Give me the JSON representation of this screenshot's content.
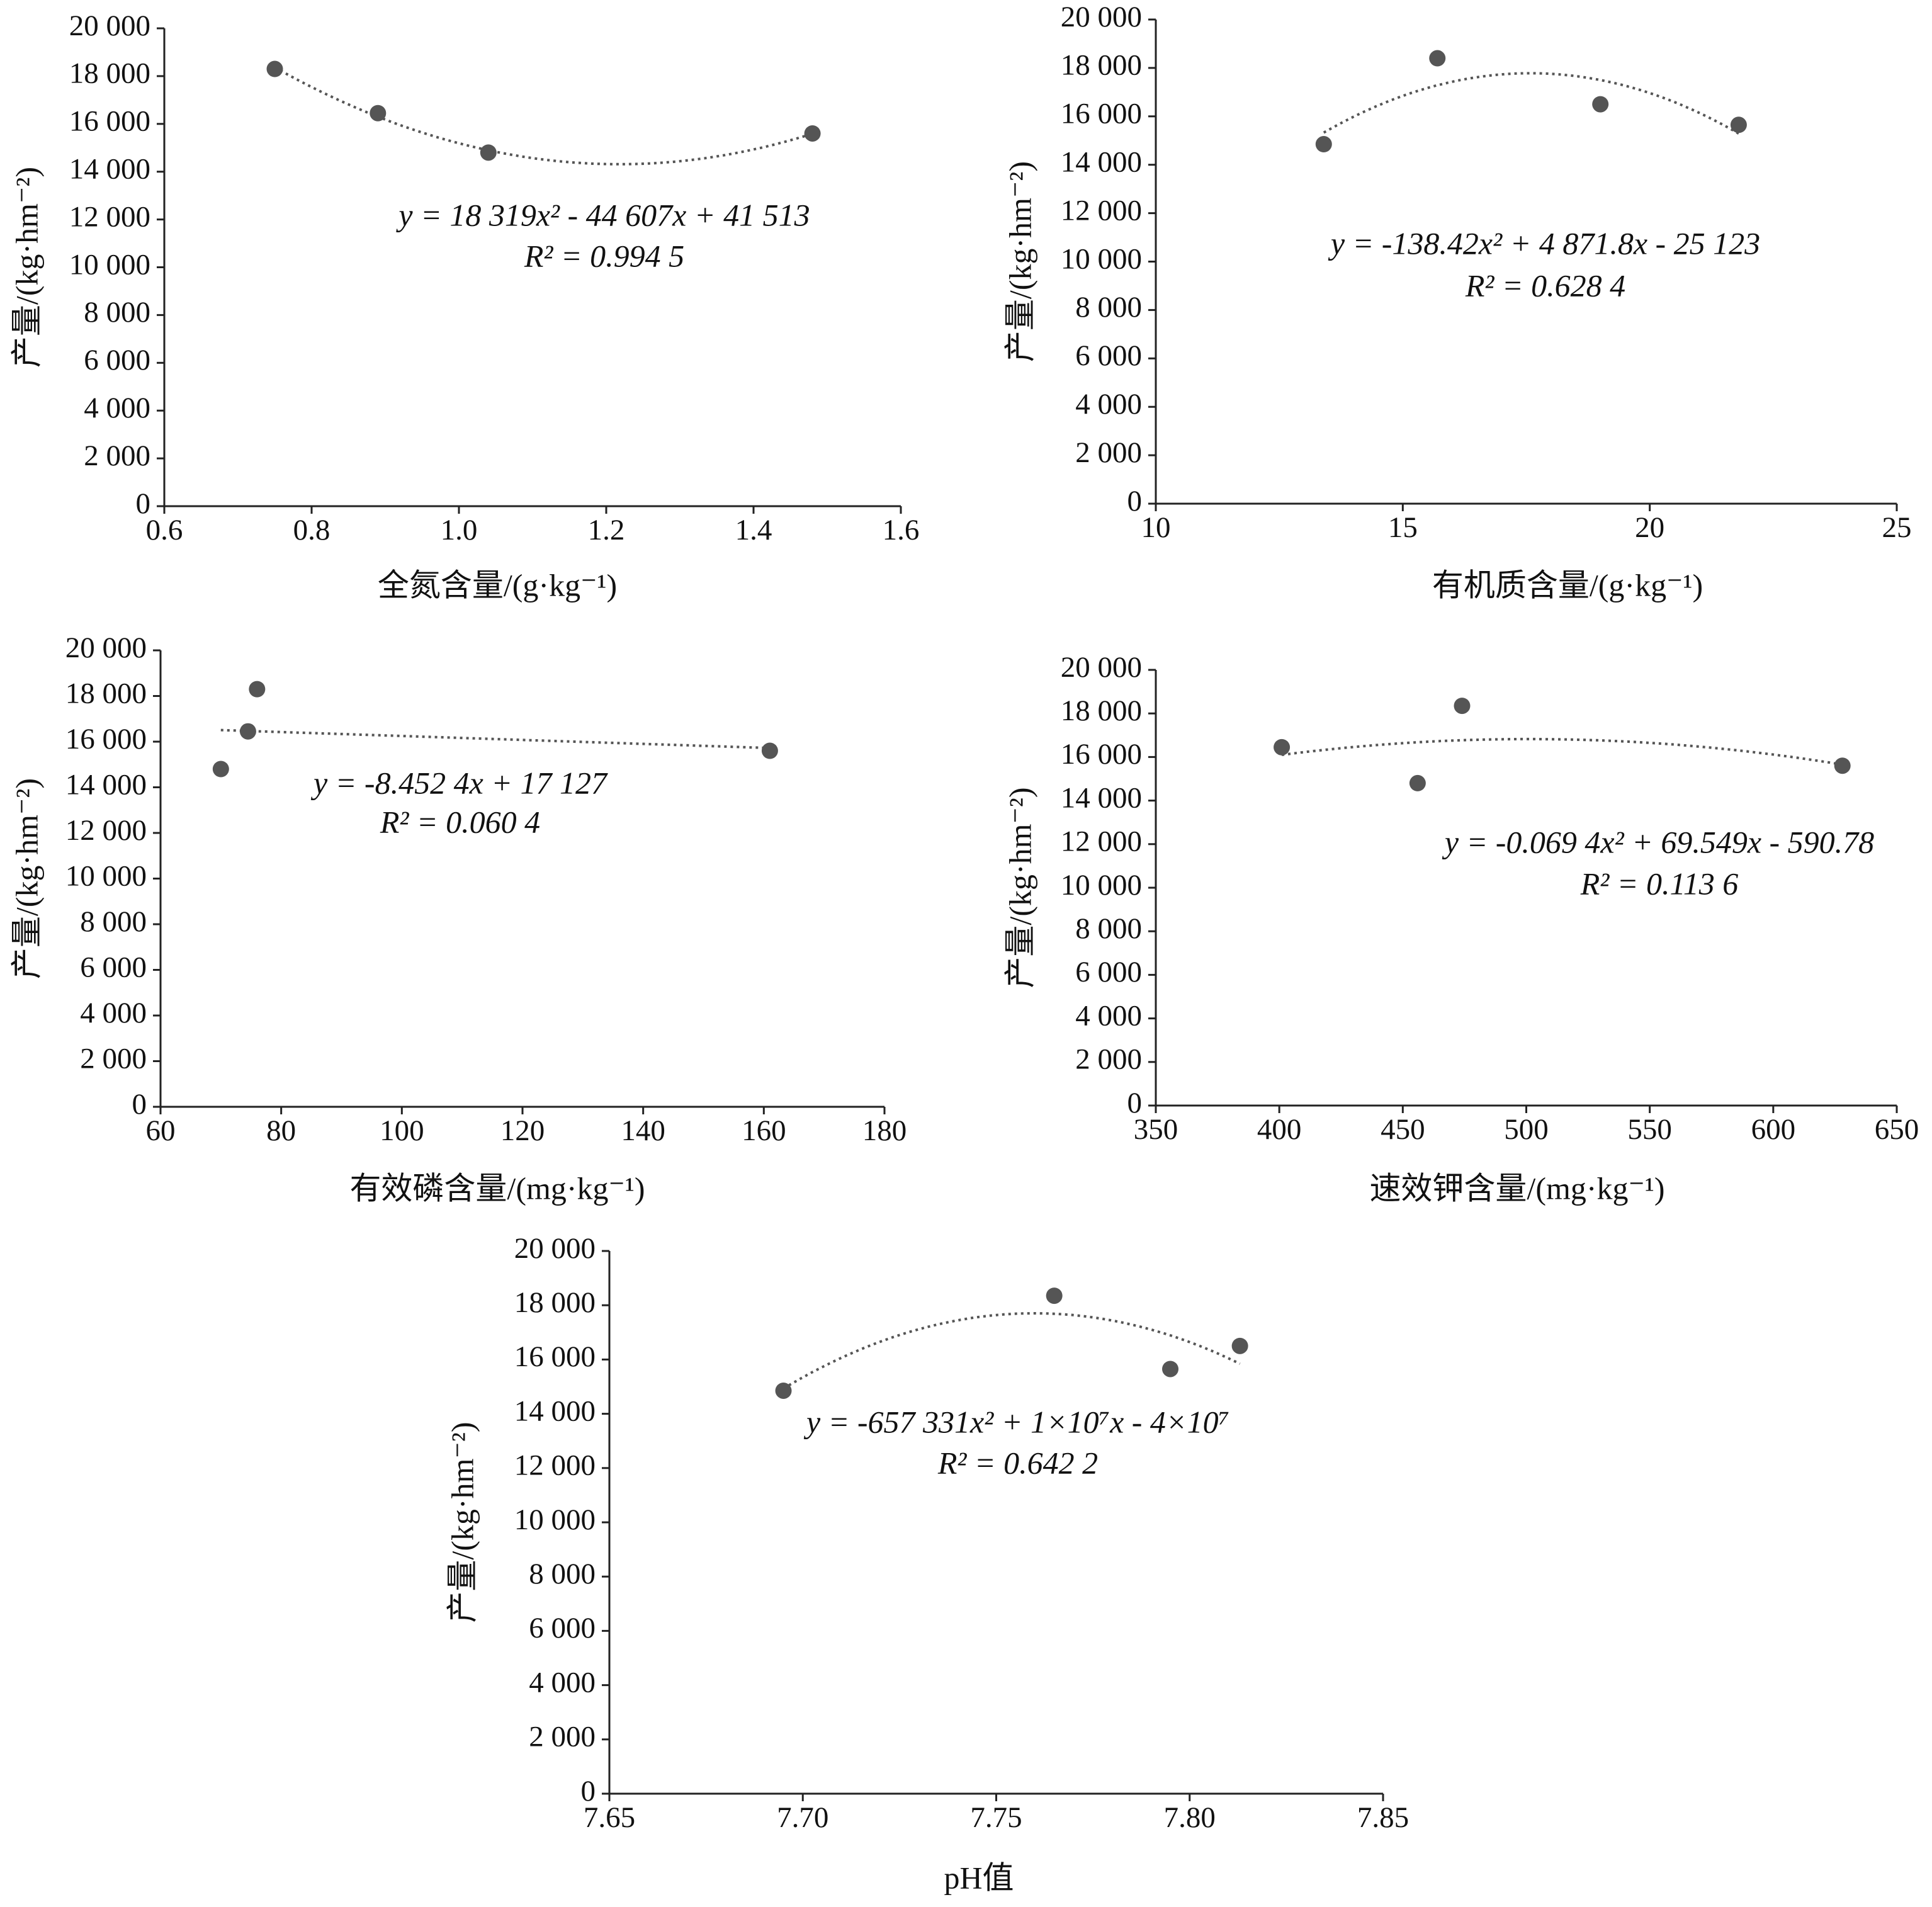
{
  "chart_data": [
    {
      "type": "scatter",
      "x_label": "全氮含量/(g·kg⁻¹)",
      "y_label": "产量/(kg·hm⁻²)",
      "x": [
        0.75,
        0.89,
        1.04,
        1.48
      ],
      "values": [
        18300,
        16450,
        14800,
        15600
      ],
      "color": "#555555",
      "xlim": [
        0.6,
        1.6
      ],
      "xticks": [
        0.6,
        0.8,
        {
          "value": 1.0,
          "label": "1.0"
        },
        1.2,
        1.4,
        1.6
      ],
      "ylim": [
        0,
        20000
      ],
      "yticks": [
        0,
        {
          "value": 2000,
          "label": "2 000"
        },
        {
          "value": 4000,
          "label": "4 000"
        },
        {
          "value": 6000,
          "label": "6 000"
        },
        {
          "value": 8000,
          "label": "8 000"
        },
        {
          "value": 10000,
          "label": "10 000"
        },
        {
          "value": 12000,
          "label": "12 000"
        },
        {
          "value": 14000,
          "label": "14 000"
        },
        {
          "value": 16000,
          "label": "16 000"
        },
        {
          "value": 18000,
          "label": "18 000"
        },
        {
          "value": 20000,
          "label": "20 000"
        }
      ],
      "trendline": {
        "order": 2,
        "equation": "y = 18 319x² - 44 607x + 41 513",
        "r2": "R² = 0.994 5"
      }
    },
    {
      "type": "scatter",
      "x_label": "有机质含量/(g·kg⁻¹)",
      "y_label": "产量/(kg·hm⁻²)",
      "x": [
        13.4,
        15.7,
        19.0,
        21.8
      ],
      "values": [
        14850,
        18400,
        16500,
        15650
      ],
      "color": "#555555",
      "xlim": [
        10,
        25
      ],
      "xticks": [
        10,
        15,
        20,
        25
      ],
      "ylim": [
        0,
        20000
      ],
      "yticks": [
        0,
        {
          "value": 2000,
          "label": "2 000"
        },
        {
          "value": 4000,
          "label": "4 000"
        },
        {
          "value": 6000,
          "label": "6 000"
        },
        {
          "value": 8000,
          "label": "8 000"
        },
        {
          "value": 10000,
          "label": "10 000"
        },
        {
          "value": 12000,
          "label": "12 000"
        },
        {
          "value": 14000,
          "label": "14 000"
        },
        {
          "value": 16000,
          "label": "16 000"
        },
        {
          "value": 18000,
          "label": "18 000"
        },
        {
          "value": 20000,
          "label": "20 000"
        }
      ],
      "trendline": {
        "order": 2,
        "equation": "y = -138.42x² + 4 871.8x - 25 123",
        "r2": "R² = 0.628 4"
      }
    },
    {
      "type": "scatter",
      "x_label": "有效磷含量/(mg·kg⁻¹)",
      "y_label": "产量/(kg·hm⁻²)",
      "x": [
        70,
        74.5,
        76,
        161
      ],
      "values": [
        14800,
        16450,
        18300,
        15600
      ],
      "color": "#555555",
      "xlim": [
        60,
        180
      ],
      "xticks": [
        60,
        80,
        100,
        120,
        140,
        160,
        180
      ],
      "ylim": [
        0,
        20000
      ],
      "yticks": [
        0,
        {
          "value": 2000,
          "label": "2 000"
        },
        {
          "value": 4000,
          "label": "4 000"
        },
        {
          "value": 6000,
          "label": "6 000"
        },
        {
          "value": 8000,
          "label": "8 000"
        },
        {
          "value": 10000,
          "label": "10 000"
        },
        {
          "value": 12000,
          "label": "12 000"
        },
        {
          "value": 14000,
          "label": "14 000"
        },
        {
          "value": 16000,
          "label": "16 000"
        },
        {
          "value": 18000,
          "label": "18 000"
        },
        {
          "value": 20000,
          "label": "20 000"
        }
      ],
      "trendline": {
        "order": 1,
        "equation": "y = -8.452 4x + 17 127",
        "r2": "R² = 0.060 4"
      }
    },
    {
      "type": "scatter",
      "x_label": "速效钾含量/(mg·kg⁻¹)",
      "y_label": "产量/(kg·hm⁻²)",
      "x": [
        401,
        456,
        474,
        628
      ],
      "values": [
        16450,
        14800,
        18350,
        15600
      ],
      "color": "#555555",
      "xlim": [
        350,
        650
      ],
      "xticks": [
        350,
        400,
        450,
        500,
        550,
        600,
        650
      ],
      "ylim": [
        0,
        20000
      ],
      "yticks": [
        0,
        {
          "value": 2000,
          "label": "2 000"
        },
        {
          "value": 4000,
          "label": "4 000"
        },
        {
          "value": 6000,
          "label": "6 000"
        },
        {
          "value": 8000,
          "label": "8 000"
        },
        {
          "value": 10000,
          "label": "10 000"
        },
        {
          "value": 12000,
          "label": "12 000"
        },
        {
          "value": 14000,
          "label": "14 000"
        },
        {
          "value": 16000,
          "label": "16 000"
        },
        {
          "value": 18000,
          "label": "18 000"
        },
        {
          "value": 20000,
          "label": "20 000"
        }
      ],
      "trendline": {
        "order": 2,
        "equation": "y = -0.069 4x² + 69.549x - 590.78",
        "r2": "R² = 0.113 6"
      }
    },
    {
      "type": "scatter",
      "x_label": "pH值",
      "y_label": "产量/(kg·hm⁻²)",
      "x": [
        7.695,
        7.765,
        7.795,
        7.813
      ],
      "values": [
        14850,
        18350,
        15650,
        16500
      ],
      "color": "#555555",
      "xlim": [
        7.65,
        7.85
      ],
      "xticks": [
        7.65,
        {
          "value": 7.7,
          "label": "7.70"
        },
        7.75,
        {
          "value": 7.8,
          "label": "7.80"
        },
        7.85
      ],
      "ylim": [
        0,
        20000
      ],
      "yticks": [
        0,
        {
          "value": 2000,
          "label": "2 000"
        },
        {
          "value": 4000,
          "label": "4 000"
        },
        {
          "value": 6000,
          "label": "6 000"
        },
        {
          "value": 8000,
          "label": "8 000"
        },
        {
          "value": 10000,
          "label": "10 000"
        },
        {
          "value": 12000,
          "label": "12 000"
        },
        {
          "value": 14000,
          "label": "14 000"
        },
        {
          "value": 16000,
          "label": "16 000"
        },
        {
          "value": 18000,
          "label": "18 000"
        },
        {
          "value": 20000,
          "label": "20 000"
        }
      ],
      "trendline": {
        "order": 2,
        "equation": "y = -657 331x² + 1×10⁷x - 4×10⁷",
        "r2": "R² = 0.642 2"
      }
    }
  ]
}
